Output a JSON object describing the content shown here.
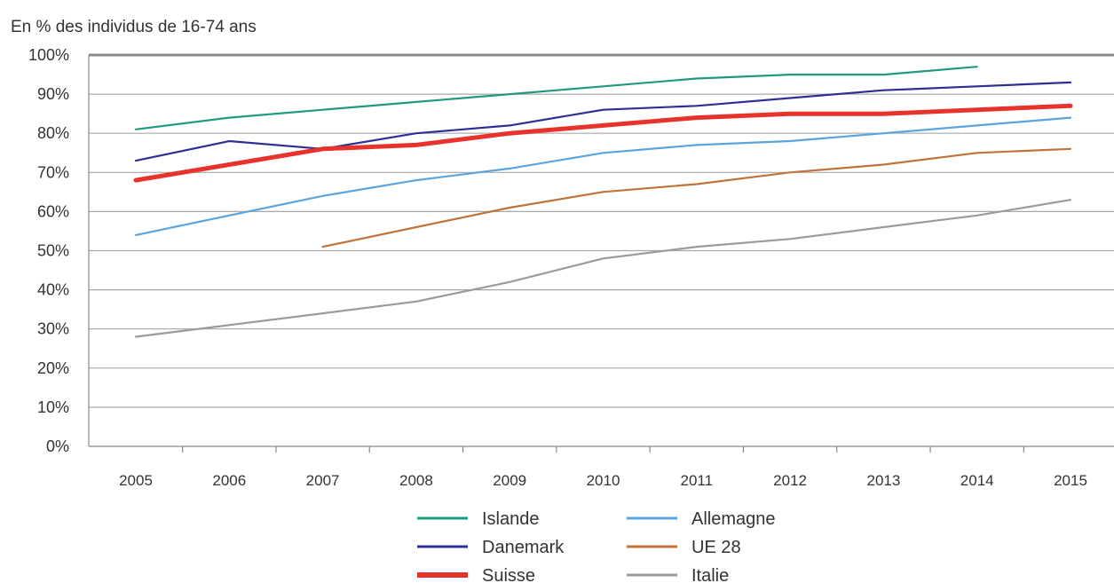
{
  "chart_data": {
    "type": "line",
    "subtitle": "En % des individus de 16-74 ans",
    "x": [
      "2005",
      "2006",
      "2007",
      "2008",
      "2009",
      "2010",
      "2011",
      "2012",
      "2013",
      "2014",
      "2015"
    ],
    "ylim": [
      0,
      100
    ],
    "yticks": [
      "0%",
      "10%",
      "20%",
      "30%",
      "40%",
      "50%",
      "60%",
      "70%",
      "80%",
      "90%",
      "100%"
    ],
    "grid": true,
    "legend_position": "bottom",
    "series": [
      {
        "name": "Islande",
        "color": "#1f9a7e",
        "bold": false,
        "values": [
          81,
          84,
          86,
          88,
          90,
          92,
          94,
          95,
          95,
          97,
          null
        ]
      },
      {
        "name": "Danemark",
        "color": "#2e2f93",
        "bold": false,
        "values": [
          73,
          78,
          76,
          80,
          82,
          86,
          87,
          89,
          91,
          92,
          93
        ]
      },
      {
        "name": "Suisse",
        "color": "#e8322c",
        "bold": true,
        "values": [
          68,
          72,
          76,
          77,
          80,
          82,
          84,
          85,
          85,
          86,
          87
        ]
      },
      {
        "name": "Allemagne",
        "color": "#5ba4de",
        "bold": false,
        "values": [
          54,
          59,
          64,
          68,
          71,
          75,
          77,
          78,
          80,
          82,
          84
        ]
      },
      {
        "name": "UE 28",
        "color": "#c0733a",
        "bold": false,
        "values": [
          null,
          null,
          51,
          56,
          61,
          65,
          67,
          70,
          72,
          75,
          76
        ]
      },
      {
        "name": "Italie",
        "color": "#9b9b9b",
        "bold": false,
        "values": [
          28,
          31,
          34,
          37,
          42,
          48,
          51,
          53,
          56,
          59,
          63
        ]
      }
    ]
  }
}
